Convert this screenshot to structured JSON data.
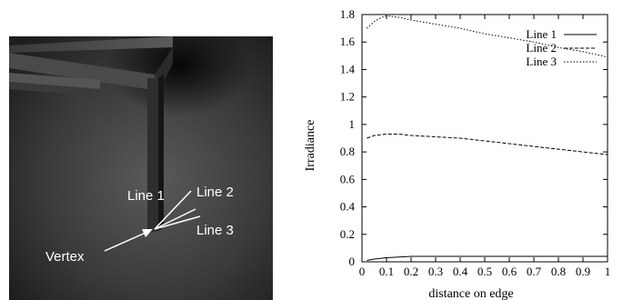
{
  "render_figure": {
    "labels": {
      "line1": "Line 1",
      "line2": "Line 2",
      "line3": "Line 3",
      "vertex": "Vertex"
    }
  },
  "chart_data": {
    "type": "line",
    "xlabel": "distance on edge",
    "ylabel": "Irradiance",
    "xlim": [
      0,
      1
    ],
    "ylim": [
      0,
      1.8
    ],
    "xticks": [
      "0",
      "0.1",
      "0.2",
      "0.3",
      "0.4",
      "0.5",
      "0.6",
      "0.7",
      "0.8",
      "0.9",
      "1"
    ],
    "yticks": [
      "0",
      "0.2",
      "0.4",
      "0.6",
      "0.8",
      "1",
      "1.2",
      "1.4",
      "1.6",
      "1.8"
    ],
    "grid": false,
    "legend_position": "top-right",
    "series": [
      {
        "name": "Line 1",
        "style": "solid",
        "x": [
          0.02,
          0.05,
          0.1,
          0.15,
          0.2,
          0.3,
          0.4,
          0.5,
          0.6,
          0.7,
          0.8,
          0.9,
          1.0
        ],
        "y": [
          0.01,
          0.02,
          0.03,
          0.035,
          0.04,
          0.04,
          0.04,
          0.04,
          0.04,
          0.04,
          0.04,
          0.04,
          0.04
        ]
      },
      {
        "name": "Line 2",
        "style": "dashed",
        "x": [
          0.02,
          0.05,
          0.1,
          0.15,
          0.2,
          0.3,
          0.4,
          0.5,
          0.6,
          0.7,
          0.8,
          0.9,
          1.0
        ],
        "y": [
          0.9,
          0.92,
          0.93,
          0.93,
          0.92,
          0.91,
          0.9,
          0.88,
          0.86,
          0.84,
          0.82,
          0.8,
          0.78
        ]
      },
      {
        "name": "Line 3",
        "style": "dotted",
        "x": [
          0.02,
          0.05,
          0.08,
          0.1,
          0.15,
          0.2,
          0.3,
          0.4,
          0.5,
          0.6,
          0.7,
          0.8,
          0.9,
          1.0
        ],
        "y": [
          1.7,
          1.75,
          1.78,
          1.79,
          1.78,
          1.76,
          1.73,
          1.7,
          1.66,
          1.63,
          1.6,
          1.56,
          1.53,
          1.49
        ]
      }
    ]
  }
}
